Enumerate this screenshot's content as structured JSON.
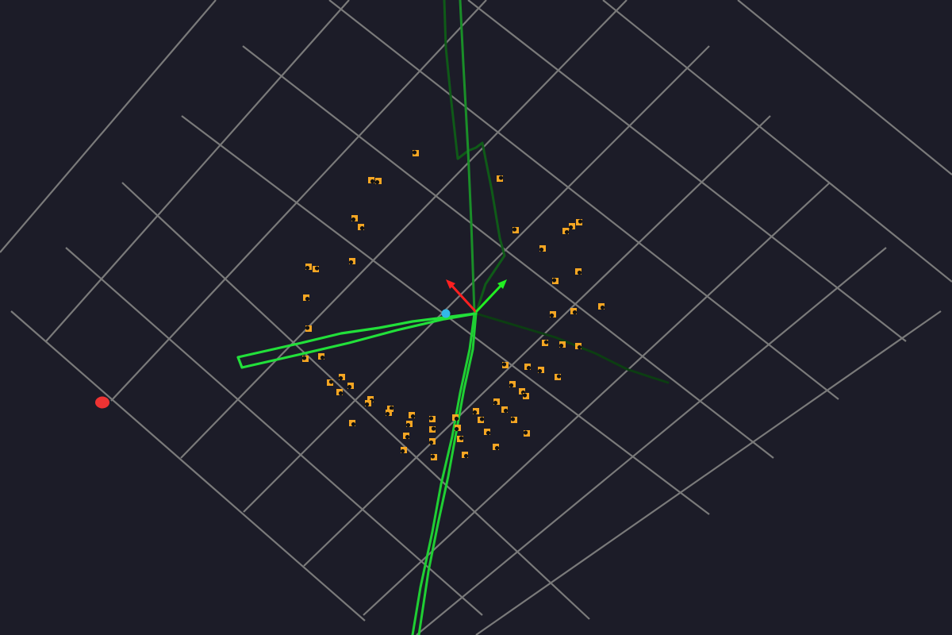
{
  "scene": {
    "background": "#1c1c28",
    "grid_color": "#7a7a7a",
    "path_color_bright": "#22e03a",
    "path_color_mid": "#1aa82c",
    "path_color_dark": "#0f5a18",
    "landmark_fill": "#f5a623",
    "landmark_mark": "#111111",
    "pose_axis_x_color": "#ff2020",
    "pose_axis_y_color": "#22ee22",
    "camera_marker_color": "#33b8e8",
    "target_marker_color": "#ee3333",
    "icons": [
      "pose-axes-icon",
      "camera-dot-icon",
      "target-dot-icon",
      "landmark-icon"
    ]
  }
}
